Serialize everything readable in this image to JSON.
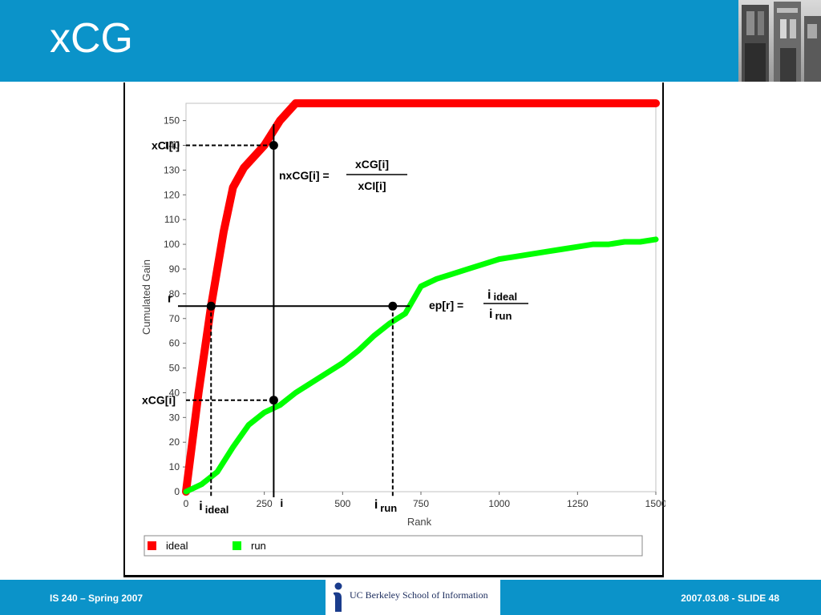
{
  "slide": {
    "title": "xCG",
    "footer_left": "IS 240 – Spring 2007",
    "footer_right": "2007.03.08 - SLIDE 48",
    "logo_text": "UC Berkeley School of Information",
    "photo_icon": "building-photo-icon",
    "colors": {
      "header": "#0b93c9",
      "ideal": "#ff0000",
      "run": "#00ff00"
    }
  },
  "chart_data": {
    "type": "line",
    "xlabel": "Rank",
    "ylabel": "Cumulated Gain",
    "xlim": [
      0,
      1500
    ],
    "ylim": [
      0,
      157
    ],
    "x_ticks": [
      0,
      250,
      500,
      750,
      1000,
      1250,
      1500
    ],
    "x_tick_labels": [
      "0",
      "250",
      "500",
      "750",
      "1000",
      "1250",
      "1500"
    ],
    "y_ticks": [
      0,
      10,
      20,
      30,
      40,
      50,
      60,
      70,
      80,
      90,
      100,
      110,
      120,
      130,
      140,
      150
    ],
    "y_tick_labels": [
      "0",
      "10",
      "20",
      "30",
      "40",
      "50",
      "60",
      "70",
      "80",
      "90",
      "100",
      "110",
      "120",
      "130",
      "140",
      "150"
    ],
    "grid": false,
    "legend_position": "bottom",
    "series": [
      {
        "name": "ideal",
        "color": "#ff0000",
        "x": [
          0,
          40,
          80,
          120,
          150,
          185,
          250,
          300,
          350,
          450,
          1500
        ],
        "y": [
          0,
          40,
          75,
          105,
          123,
          131,
          140,
          150,
          157,
          157,
          157
        ]
      },
      {
        "name": "run",
        "color": "#00ff00",
        "x": [
          0,
          50,
          100,
          150,
          200,
          250,
          300,
          350,
          400,
          450,
          500,
          550,
          600,
          650,
          700,
          750,
          800,
          850,
          900,
          950,
          1000,
          1050,
          1100,
          1150,
          1200,
          1250,
          1300,
          1350,
          1400,
          1450,
          1500
        ],
        "y": [
          0,
          3,
          8,
          18,
          27,
          32,
          35,
          40,
          44,
          48,
          52,
          57,
          63,
          68,
          72,
          83,
          86,
          88,
          90,
          92,
          94,
          95,
          96,
          97,
          98,
          99,
          100,
          100,
          101,
          101,
          102
        ]
      }
    ],
    "annotations": {
      "xci_label": "xCI[i]",
      "xcg_label": "xCG[i]",
      "r_label": "r",
      "i_label": "i",
      "i_ideal_main": "i",
      "i_ideal_sub": "ideal",
      "i_run_main": "i",
      "i_run_sub": "run",
      "nxcg_lhs": "nxCG[i] =",
      "nxcg_num": "xCG[i]",
      "nxcg_den": "xCI[i]",
      "ep_lhs": "ep[r]  =",
      "ep_num_main": "i",
      "ep_num_sub": "ideal",
      "ep_den_main": "i",
      "ep_den_sub": "run",
      "marker_i": 280,
      "marker_r": 75,
      "marker_i_ideal": 80,
      "marker_i_run": 660,
      "xci_value": 140,
      "xcg_value": 37
    }
  }
}
